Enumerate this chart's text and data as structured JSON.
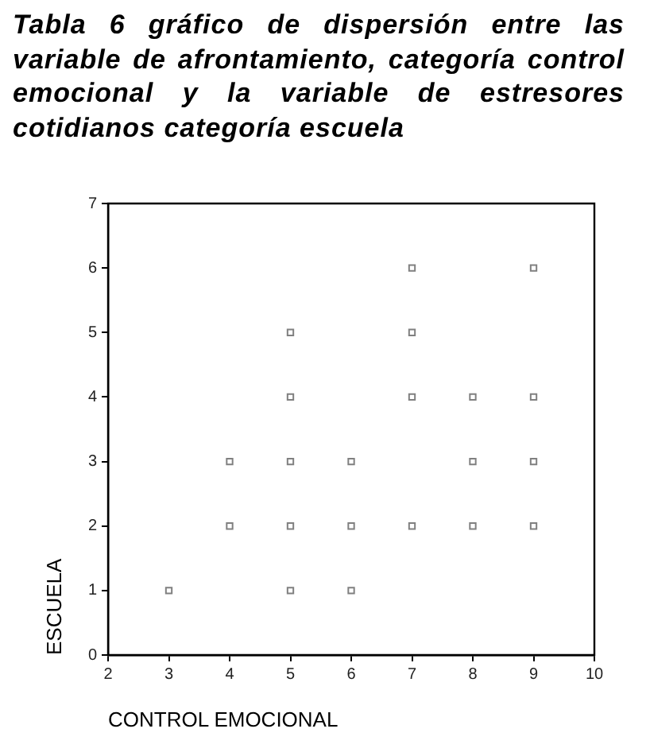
{
  "chart_data": {
    "type": "scatter",
    "title": "Tabla 6 gráfico de dispersión entre las variable de afrontamiento, categoría control emocional y la variable de estresores cotidianos categoría escuela",
    "xlabel": "CONTROL EMOCIONAL",
    "ylabel": "ESCUELA",
    "x": [
      3,
      4,
      4,
      5,
      5,
      5,
      5,
      5,
      6,
      6,
      6,
      7,
      7,
      7,
      7,
      8,
      8,
      8,
      9,
      9,
      9,
      9
    ],
    "series": [
      {
        "color": "#808080",
        "values": [
          1,
          2,
          3,
          1,
          2,
          3,
          4,
          5,
          1,
          2,
          3,
          2,
          4,
          5,
          6,
          2,
          3,
          4,
          2,
          3,
          4,
          6
        ]
      }
    ],
    "xlim": [
      2,
      10
    ],
    "xticks": [
      2,
      3,
      4,
      5,
      6,
      7,
      8,
      9,
      10
    ],
    "ylim": [
      0,
      7
    ],
    "yticks": [
      0,
      1,
      2,
      3,
      4,
      5,
      6,
      7
    ],
    "grid": false,
    "legend": false,
    "marker": "square"
  }
}
